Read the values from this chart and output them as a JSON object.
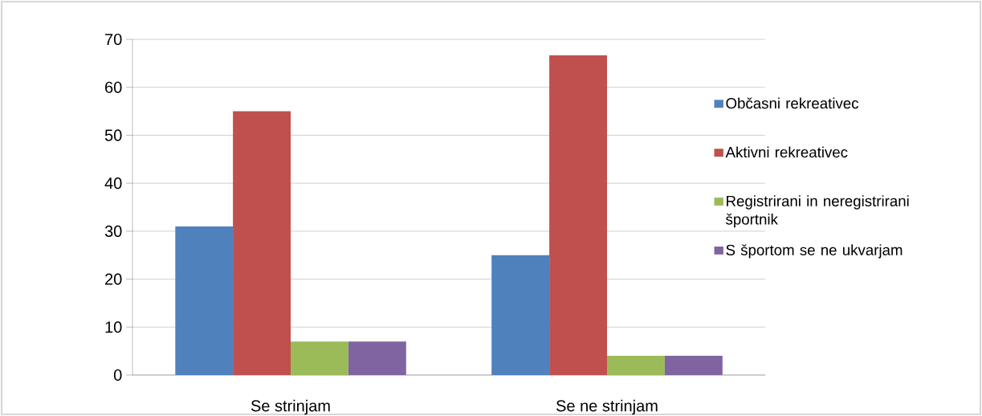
{
  "chart_data": {
    "type": "bar",
    "categories": [
      "Se strinjam",
      "Se ne strinjam"
    ],
    "series": [
      {
        "name": "Občasni rekreativec",
        "color": "#4f81bd",
        "values": [
          31,
          25
        ]
      },
      {
        "name": "Aktivni rekreativec",
        "color": "#c0504d",
        "values": [
          55,
          66.7
        ]
      },
      {
        "name": "Registrirani in neregistrirani športnik",
        "color": "#9bbb59",
        "values": [
          7,
          4
        ]
      },
      {
        "name": "S športom se ne ukvarjam",
        "color": "#8064a2",
        "values": [
          7,
          4
        ]
      }
    ],
    "ylim": [
      0,
      70
    ],
    "yticks": [
      0,
      10,
      20,
      30,
      40,
      50,
      60,
      70
    ],
    "grid": "y",
    "legend": "right"
  }
}
